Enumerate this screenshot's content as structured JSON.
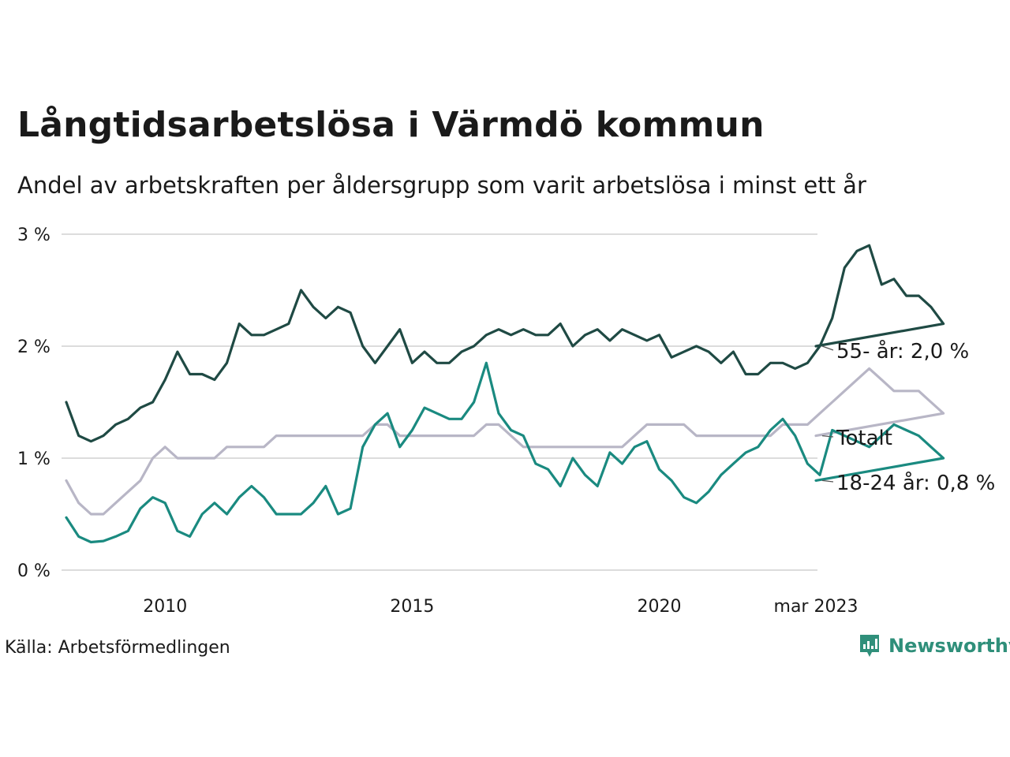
{
  "title": "Långtidsarbetslösa i Värmdö kommun",
  "subtitle": "Andel av arbetskraften per åldersgrupp som varit arbetslösa i minst ett år",
  "source": "Källa: Arbetsförmedlingen",
  "brand": {
    "name": "Newsworthy",
    "icon": "bar-chart-speech-bubble-icon",
    "color": "#2f8f7a"
  },
  "chart_data": {
    "type": "line",
    "ylim": [
      0,
      3
    ],
    "xlim": [
      2008.0,
      2023.17
    ],
    "y_ticks": [
      {
        "value": 0,
        "label": "0 %"
      },
      {
        "value": 1,
        "label": "1 %"
      },
      {
        "value": 2,
        "label": "2 %"
      },
      {
        "value": 3,
        "label": "3 %"
      }
    ],
    "x_ticks": [
      {
        "value": 2010,
        "label": "2010"
      },
      {
        "value": 2015,
        "label": "2015"
      },
      {
        "value": 2020,
        "label": "2020"
      },
      {
        "value": 2023.17,
        "label": "mar 2023"
      }
    ],
    "grid": true,
    "series": [
      {
        "name": "55- år",
        "end_label": "55- år: 2,0 %",
        "color": "#1f4a44",
        "x0": 2008.0,
        "step": 0.25,
        "values": [
          1.5,
          1.2,
          1.15,
          1.2,
          1.3,
          1.35,
          1.45,
          1.5,
          1.7,
          1.95,
          1.75,
          1.75,
          1.7,
          1.85,
          2.2,
          2.1,
          2.1,
          2.15,
          2.2,
          2.5,
          2.35,
          2.25,
          2.35,
          2.3,
          2.0,
          1.85,
          2.0,
          2.15,
          1.85,
          1.95,
          1.85,
          1.85,
          1.95,
          2.0,
          2.1,
          2.15,
          2.1,
          2.15,
          2.1,
          2.1,
          2.2,
          2.0,
          2.1,
          2.15,
          2.05,
          2.15,
          2.1,
          2.05,
          2.1,
          1.9,
          1.95,
          2.0,
          1.95,
          1.85,
          1.95,
          1.75,
          1.75,
          1.85,
          1.85,
          1.8,
          1.85,
          2.0,
          2.25,
          2.7,
          2.85,
          2.9,
          2.55,
          2.6,
          2.45,
          2.45,
          2.35,
          2.2,
          2.0
        ]
      },
      {
        "name": "Totalt",
        "end_label": "Totalt",
        "color": "#b8b6c6",
        "x0": 2008.0,
        "step": 0.25,
        "values": [
          0.8,
          0.6,
          0.5,
          0.5,
          0.6,
          0.7,
          0.8,
          1.0,
          1.1,
          1.0,
          1.0,
          1.0,
          1.0,
          1.1,
          1.1,
          1.1,
          1.1,
          1.2,
          1.2,
          1.2,
          1.2,
          1.2,
          1.2,
          1.2,
          1.2,
          1.3,
          1.3,
          1.2,
          1.2,
          1.2,
          1.2,
          1.2,
          1.2,
          1.2,
          1.3,
          1.3,
          1.2,
          1.1,
          1.1,
          1.1,
          1.1,
          1.1,
          1.1,
          1.1,
          1.1,
          1.1,
          1.2,
          1.3,
          1.3,
          1.3,
          1.3,
          1.2,
          1.2,
          1.2,
          1.2,
          1.2,
          1.2,
          1.2,
          1.3,
          1.3,
          1.3,
          1.4,
          1.5,
          1.6,
          1.7,
          1.8,
          1.7,
          1.6,
          1.6,
          1.6,
          1.5,
          1.4,
          1.2
        ]
      },
      {
        "name": "18-24 år",
        "end_label": "18-24 år: 0,8 %",
        "color": "#1a8a80",
        "x0": 2008.0,
        "step": 0.25,
        "values": [
          0.47,
          0.3,
          0.25,
          0.26,
          0.3,
          0.35,
          0.55,
          0.65,
          0.6,
          0.35,
          0.3,
          0.5,
          0.6,
          0.5,
          0.65,
          0.75,
          0.65,
          0.5,
          0.5,
          0.5,
          0.6,
          0.75,
          0.5,
          0.55,
          1.1,
          1.3,
          1.4,
          1.1,
          1.25,
          1.45,
          1.4,
          1.35,
          1.35,
          1.5,
          1.85,
          1.4,
          1.25,
          1.2,
          0.95,
          0.9,
          0.75,
          1.0,
          0.85,
          0.75,
          1.05,
          0.95,
          1.1,
          1.15,
          0.9,
          0.8,
          0.65,
          0.6,
          0.7,
          0.85,
          0.95,
          1.05,
          1.1,
          1.25,
          1.35,
          1.2,
          0.95,
          0.85,
          1.25,
          1.2,
          1.15,
          1.1,
          1.2,
          1.3,
          1.25,
          1.2,
          1.1,
          1.0,
          0.8
        ]
      }
    ]
  }
}
